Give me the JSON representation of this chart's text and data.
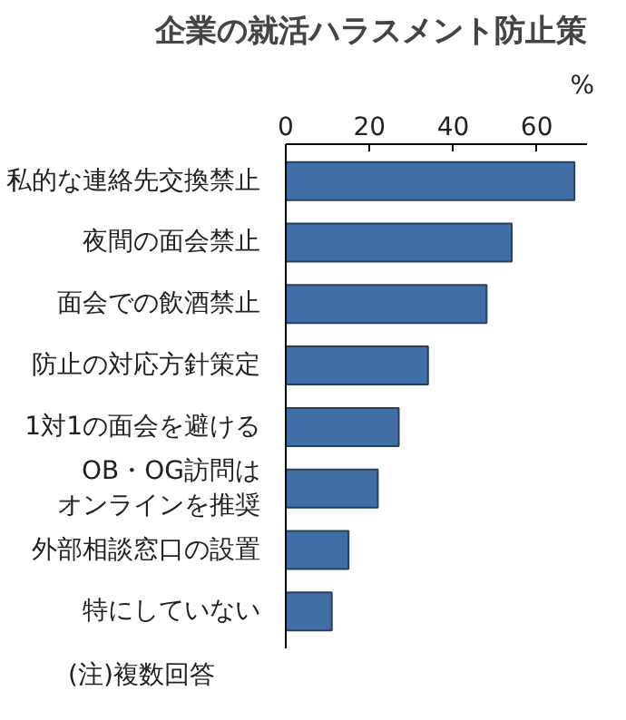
{
  "chart_data": {
    "type": "bar",
    "orientation": "horizontal",
    "title": "企業の就活ハラスメント防止策",
    "xlabel": "%",
    "categories": [
      "私的な連絡先交換禁止",
      "夜間の面会禁止",
      "面会での飲酒禁止",
      "防止の対応方針策定",
      "1対1の面会を避ける",
      "OB・OG訪問はオンラインを推奨",
      "外部相談窓口の設置",
      "特にしていない"
    ],
    "values": [
      69,
      54,
      48,
      34,
      27,
      22,
      15,
      11
    ],
    "color": "#3f6fa6",
    "xlim": [
      0,
      72
    ],
    "xticks": [
      0,
      20,
      40,
      60
    ],
    "grid": false,
    "annotations": [
      "(注)複数回答"
    ]
  }
}
